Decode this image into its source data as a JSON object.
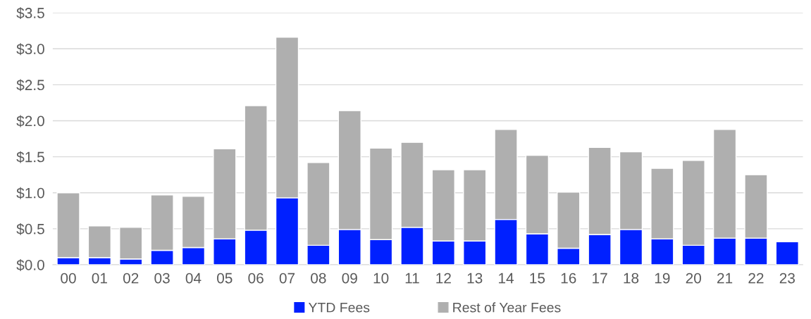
{
  "chart_data": {
    "type": "bar",
    "stacked": true,
    "categories": [
      "00",
      "01",
      "02",
      "03",
      "04",
      "05",
      "06",
      "07",
      "08",
      "09",
      "10",
      "11",
      "12",
      "13",
      "14",
      "15",
      "16",
      "17",
      "18",
      "19",
      "20",
      "21",
      "22",
      "23"
    ],
    "series": [
      {
        "name": "YTD Fees",
        "color": "#0020ff",
        "values": [
          0.1,
          0.1,
          0.08,
          0.2,
          0.24,
          0.36,
          0.48,
          0.93,
          0.27,
          0.49,
          0.35,
          0.52,
          0.33,
          0.33,
          0.63,
          0.43,
          0.23,
          0.42,
          0.49,
          0.36,
          0.27,
          0.37,
          0.37,
          0.32
        ]
      },
      {
        "name": "Rest of Year Fees",
        "color": "#afafaf",
        "values": [
          0.9,
          0.44,
          0.44,
          0.77,
          0.71,
          1.25,
          1.73,
          2.23,
          1.15,
          1.65,
          1.27,
          1.18,
          0.99,
          0.99,
          1.25,
          1.09,
          0.78,
          1.21,
          1.08,
          0.98,
          1.18,
          1.51,
          0.88,
          null
        ]
      }
    ],
    "ylim": [
      0,
      3.5
    ],
    "yticks": [
      {
        "value": 0,
        "label": "$0.0"
      },
      {
        "value": 0.5,
        "label": "$0.5"
      },
      {
        "value": 1.0,
        "label": "$1.0"
      },
      {
        "value": 1.5,
        "label": "$1.5"
      },
      {
        "value": 2.0,
        "label": "$2.0"
      },
      {
        "value": 2.5,
        "label": "$2.5"
      },
      {
        "value": 3.0,
        "label": "$3.0"
      },
      {
        "value": 3.5,
        "label": "$3.5"
      }
    ],
    "grid": "y",
    "legend": "bottom"
  }
}
